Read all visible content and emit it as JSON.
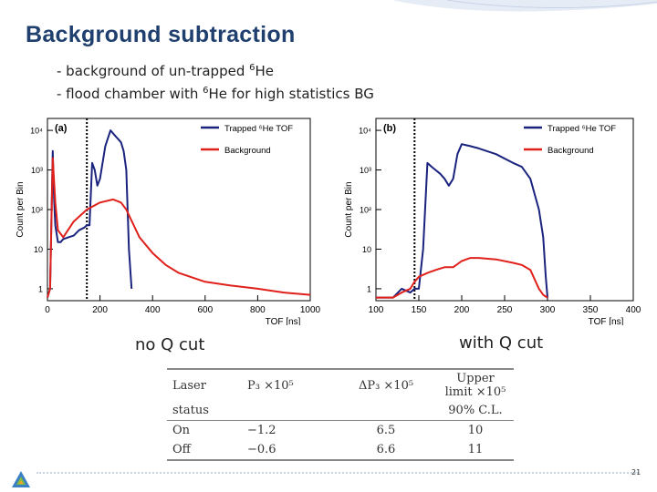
{
  "slide": {
    "title": "Background subtraction",
    "bullets": [
      {
        "pre": "- background of un-trapped ",
        "sup": "6",
        "post": "He"
      },
      {
        "pre": "- flood chamber with ",
        "sup": "6",
        "post": "He for high statistics BG"
      }
    ],
    "caption_left": "no Q cut",
    "caption_right": "with Q cut",
    "page_number": "21"
  },
  "colors": {
    "title": "#1f3f6e",
    "trapped": "#1a237e",
    "background": "#e0201a",
    "cut_line": "#000000"
  },
  "chart_data": [
    {
      "type": "line",
      "panel_label": "(a)",
      "xlabel": "TOF [ns]",
      "ylabel": "Count per Bin",
      "log_y": true,
      "xlim": [
        0,
        1000
      ],
      "ylim": [
        0.5,
        20000
      ],
      "x_ticks": [
        "0",
        "200",
        "400",
        "600",
        "800",
        "1000"
      ],
      "x_tick_values": [
        0,
        200,
        400,
        600,
        800,
        1000
      ],
      "y_ticks": [
        "1",
        "10",
        "10²",
        "10³",
        "10⁴"
      ],
      "y_tick_values": [
        1,
        10,
        100,
        1000,
        10000
      ],
      "cut_line_x": 150,
      "legend_position": "top-right",
      "series": [
        {
          "name": "Trapped ⁶He TOF",
          "color": "#1a237e",
          "x": [
            0,
            10,
            20,
            25,
            30,
            40,
            50,
            60,
            80,
            100,
            120,
            140,
            150,
            160,
            170,
            180,
            190,
            200,
            220,
            240,
            260,
            280,
            290,
            300,
            310,
            320
          ],
          "y": [
            0.6,
            1,
            3000,
            200,
            40,
            15,
            15,
            18,
            20,
            22,
            30,
            35,
            40,
            40,
            1500,
            1000,
            400,
            600,
            4000,
            10000,
            7000,
            5000,
            3000,
            1000,
            10,
            1
          ]
        },
        {
          "name": "Background",
          "color": "#e0201a",
          "x": [
            0,
            10,
            20,
            30,
            40,
            60,
            100,
            150,
            200,
            250,
            280,
            300,
            350,
            400,
            450,
            500,
            600,
            700,
            800,
            900,
            1000
          ],
          "y": [
            0.6,
            1,
            2000,
            150,
            30,
            20,
            50,
            100,
            150,
            180,
            150,
            100,
            20,
            8,
            4,
            2.5,
            1.5,
            1.2,
            1,
            0.8,
            0.7
          ]
        }
      ]
    },
    {
      "type": "line",
      "panel_label": "(b)",
      "xlabel": "TOF [ns]",
      "ylabel": "Count per Bin",
      "log_y": true,
      "xlim": [
        100,
        400
      ],
      "ylim": [
        0.5,
        20000
      ],
      "x_ticks": [
        "100",
        "150",
        "200",
        "250",
        "300",
        "350",
        "400"
      ],
      "x_tick_values": [
        100,
        150,
        200,
        250,
        300,
        350,
        400
      ],
      "y_ticks": [
        "1",
        "10",
        "10²",
        "10³",
        "10⁴"
      ],
      "y_tick_values": [
        1,
        10,
        100,
        1000,
        10000
      ],
      "cut_line_x": 145,
      "legend_position": "top-right",
      "series": [
        {
          "name": "Trapped ⁶He TOF",
          "color": "#1a237e",
          "x": [
            100,
            120,
            130,
            140,
            145,
            150,
            155,
            160,
            165,
            175,
            180,
            185,
            190,
            195,
            200,
            210,
            220,
            240,
            260,
            270,
            280,
            290,
            295,
            298,
            300
          ],
          "y": [
            0.6,
            0.6,
            1,
            0.8,
            1,
            1,
            10,
            1500,
            1200,
            800,
            600,
            400,
            600,
            2500,
            4500,
            4000,
            3500,
            2500,
            1500,
            1200,
            600,
            100,
            20,
            2,
            0.6
          ]
        },
        {
          "name": "Background",
          "color": "#e0201a",
          "x": [
            100,
            120,
            130,
            140,
            145,
            150,
            160,
            170,
            180,
            190,
            200,
            210,
            220,
            240,
            260,
            270,
            280,
            290,
            295,
            300
          ],
          "y": [
            0.6,
            0.6,
            0.8,
            1,
            1.5,
            2,
            2.5,
            3,
            3.5,
            3.5,
            5,
            6,
            6,
            5.5,
            4.5,
            4,
            3,
            1,
            0.7,
            0.6
          ]
        }
      ]
    },
    {
      "type": "table",
      "columns": [
        {
          "line1": "Laser",
          "line2": "status"
        },
        {
          "line1": "P₃ ×10⁵",
          "line2": ""
        },
        {
          "line1": "ΔP₃ ×10⁵",
          "line2": ""
        },
        {
          "line1": "Upper limit ×10⁵",
          "line2": "90% C.L."
        }
      ],
      "rows": [
        [
          "On",
          "−1.2",
          "6.5",
          "10"
        ],
        [
          "Off",
          "−0.6",
          "6.6",
          "11"
        ]
      ]
    }
  ]
}
